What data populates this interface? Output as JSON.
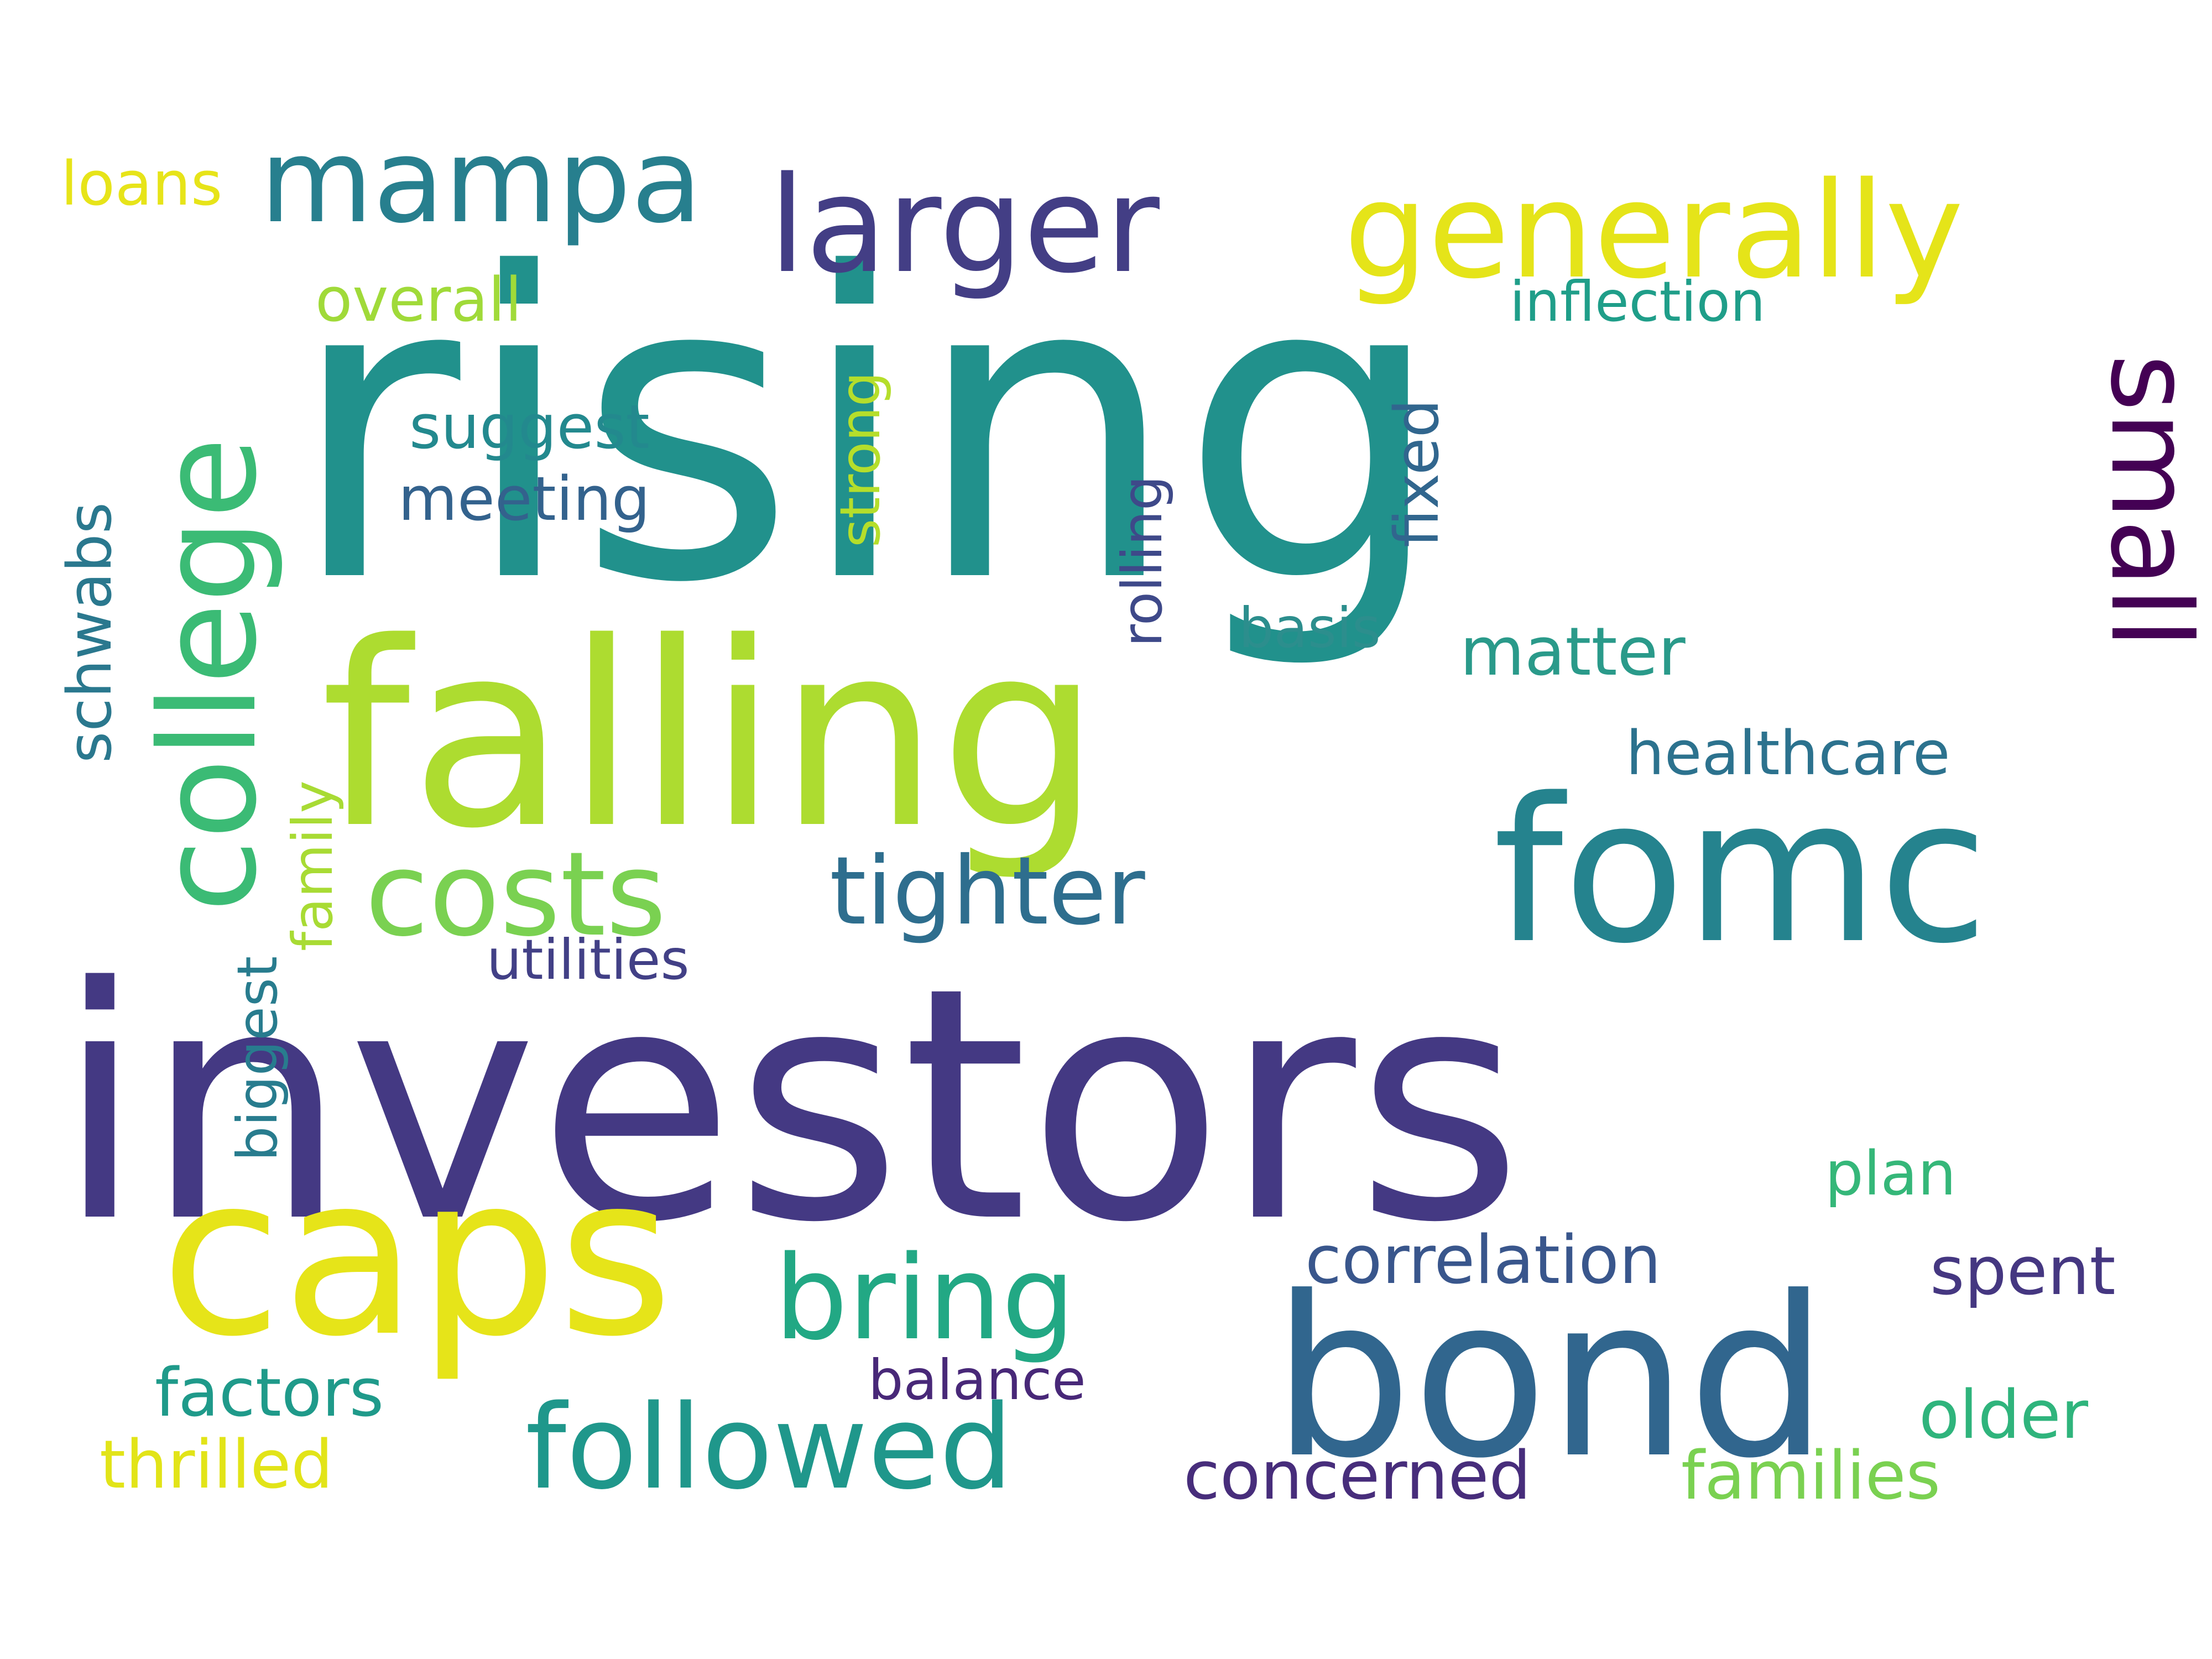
{
  "words": [
    {
      "text": "rising",
      "color": "#21918c"
    },
    {
      "text": "investors",
      "color": "#443983"
    },
    {
      "text": "falling",
      "color": "#addc30"
    },
    {
      "text": "caps",
      "color": "#e6e419"
    },
    {
      "text": "bond",
      "color": "#31668e"
    },
    {
      "text": "fomc",
      "color": "#25838e"
    },
    {
      "text": "college",
      "color": "#3bbb75"
    },
    {
      "text": "larger",
      "color": "#433e85"
    },
    {
      "text": "generally",
      "color": "#e5e419"
    },
    {
      "text": "mampa",
      "color": "#277f8e"
    },
    {
      "text": "costs",
      "color": "#7ad151"
    },
    {
      "text": "bring",
      "color": "#22a884"
    },
    {
      "text": "followed",
      "color": "#1f978b"
    },
    {
      "text": "small",
      "color": "#440154"
    },
    {
      "text": "tighter",
      "color": "#2e6e8e"
    },
    {
      "text": "correlation",
      "color": "#39568c"
    },
    {
      "text": "healthcare",
      "color": "#2c728e"
    },
    {
      "text": "matter",
      "color": "#2a9a8a"
    },
    {
      "text": "inflection",
      "color": "#1f9e89"
    },
    {
      "text": "overall",
      "color": "#a0da39"
    },
    {
      "text": "loans",
      "color": "#e7e419"
    },
    {
      "text": "suggest",
      "color": "#23898e"
    },
    {
      "text": "meeting",
      "color": "#33628d"
    },
    {
      "text": "schwabs",
      "color": "#2a788e"
    },
    {
      "text": "strong",
      "color": "#b5de2b"
    },
    {
      "text": "rolling",
      "color": "#3e4989"
    },
    {
      "text": "fixed",
      "color": "#31668e"
    },
    {
      "text": "basis",
      "color": "#2c8e8d"
    },
    {
      "text": "family",
      "color": "#a8db34"
    },
    {
      "text": "biggest",
      "color": "#287c8e"
    },
    {
      "text": "utilities",
      "color": "#424086"
    },
    {
      "text": "factors",
      "color": "#1f9a8a"
    },
    {
      "text": "thrilled",
      "color": "#e2e418"
    },
    {
      "text": "balance",
      "color": "#482878"
    },
    {
      "text": "concerned",
      "color": "#472d7b"
    },
    {
      "text": "plan",
      "color": "#35b779"
    },
    {
      "text": "spent",
      "color": "#453781"
    },
    {
      "text": "older",
      "color": "#2fb47c"
    },
    {
      "text": "families",
      "color": "#7ad151"
    }
  ]
}
